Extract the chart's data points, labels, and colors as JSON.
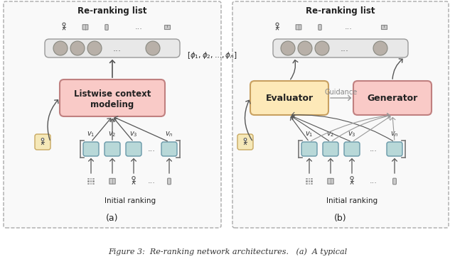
{
  "fig_width": 6.4,
  "fig_height": 3.79,
  "dpi": 100,
  "bg_color": "#ffffff",
  "panel_bg": "#f9f9f9",
  "panel_border": "#aaaaaa",
  "title_a": "Re-ranking list",
  "title_b": "Re-ranking list",
  "label_a": "(a)",
  "label_b": "(b)",
  "box_listwise_color": "#f9cac7",
  "box_listwise_edge": "#c08080",
  "box_evaluator_color": "#fde9b8",
  "box_evaluator_edge": "#c8a060",
  "box_generator_color": "#f9cac7",
  "box_generator_edge": "#c08080",
  "reranking_bar_color": "#e8e8e8",
  "reranking_bar_edge": "#999999",
  "circle_color": "#b8b0a8",
  "circle_edge": "#888880",
  "item_box_color": "#b8d8d8",
  "item_box_edge": "#6898a8",
  "user_box_color": "#f5e8b8",
  "user_box_edge": "#c8a860",
  "arrow_color": "#555555",
  "guidance_arrow_color": "#999999",
  "text_color": "#222222",
  "phi_text": "$[\\phi_1, \\phi_2, \\ldots, \\phi_n]$",
  "guidance_text": "Guidance",
  "v_labels": [
    "$v_1$",
    "$v_2$",
    "$v_3$",
    "$v_n$"
  ],
  "initial_ranking_text": "Initial ranking",
  "listwise_line1": "Listwise context",
  "listwise_line2": "modeling",
  "evaluator_text": "Evaluator",
  "generator_text": "Generator",
  "caption_text": "Figure 3:  Re-ranking network architectures.   (a)  A typical"
}
